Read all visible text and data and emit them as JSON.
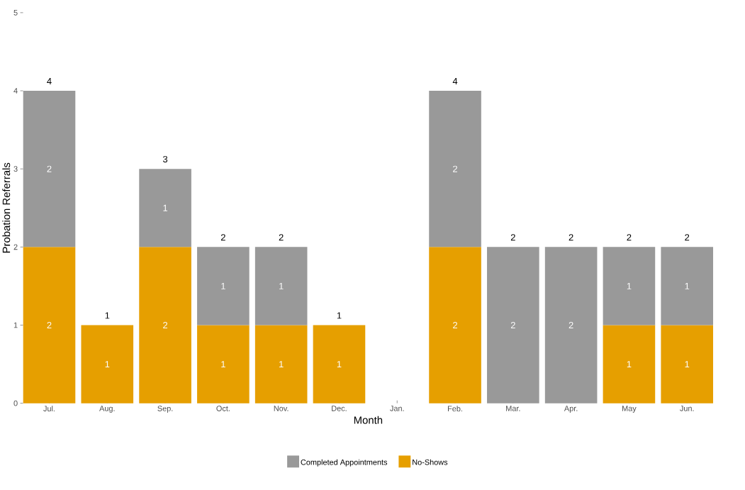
{
  "chart_data": {
    "type": "bar",
    "stacked": true,
    "xlabel": "Month",
    "ylabel": "Probation Referrals",
    "categories": [
      "Jul.",
      "Aug.",
      "Sep.",
      "Oct.",
      "Nov.",
      "Dec.",
      "Jan.",
      "Feb.",
      "Mar.",
      "Apr.",
      "May",
      "Jun."
    ],
    "series": [
      {
        "name": "No-Shows",
        "color": "#e69f00",
        "values": [
          2,
          1,
          2,
          1,
          1,
          1,
          0,
          2,
          0,
          0,
          1,
          1
        ],
        "value_labels": [
          "2",
          "1",
          "2",
          "1",
          "1",
          "1",
          null,
          "2",
          null,
          null,
          "1",
          "1"
        ]
      },
      {
        "name": "Completed Appointments",
        "color": "#999999",
        "values": [
          2,
          0,
          1,
          1,
          1,
          0,
          0,
          2,
          2,
          2,
          1,
          1
        ],
        "value_labels": [
          "2",
          null,
          "1",
          "1",
          "1",
          null,
          null,
          "2",
          "2",
          "2",
          "1",
          "1"
        ]
      }
    ],
    "totals": [
      "4",
      "1",
      "3",
      "2",
      "2",
      "1",
      null,
      "4",
      "2",
      "2",
      "2",
      "2"
    ],
    "ylim": [
      0,
      5
    ],
    "yticks": [
      0,
      1,
      2,
      3,
      4,
      5
    ],
    "grid": false,
    "legend": "bottom"
  }
}
